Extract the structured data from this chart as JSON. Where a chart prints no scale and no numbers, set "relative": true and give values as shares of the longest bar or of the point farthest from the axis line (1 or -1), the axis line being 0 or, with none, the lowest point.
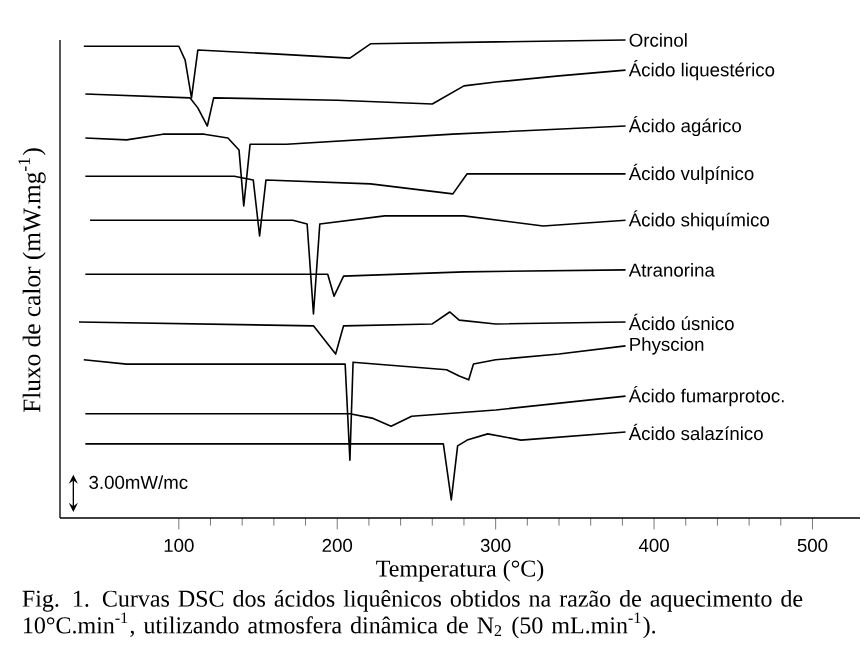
{
  "chart_data": {
    "type": "line",
    "relative": true,
    "xlabel": "Temperatura (°C)",
    "ylabel": "Fluxo de calor (mW.mg$^{-1}$)",
    "xlim": [
      25,
      530
    ],
    "xticks": [
      100,
      200,
      300,
      400,
      500
    ],
    "legend": false,
    "annotations": [
      "3.00mW/mc",
      "Fig. 1. Curvas DSC dos ácidos liquênicos obtidos na razão de aquecimento de 10°C.min$^{-1}$, utilizando atmosfera dinâmica de N$_{2}$ (50 mL.min$^{-1}$)."
    ],
    "series": [
      {
        "name": "Orcinol",
        "color": "#000000",
        "x": [
          40,
          100,
          104,
          108,
          112,
          160,
          208,
          221,
          300,
          382
        ],
        "values": [
          0.987,
          0.987,
          0.958,
          0.879,
          0.979,
          0.971,
          0.962,
          0.992,
          0.996,
          1
        ]
      },
      {
        "name": "Ácido liquestérico",
        "color": "#000000",
        "x": [
          41,
          107,
          112,
          118,
          122,
          200,
          260,
          280,
          300,
          340,
          382
        ],
        "values": [
          0.887,
          0.879,
          0.858,
          0.82,
          0.879,
          0.874,
          0.866,
          0.904,
          0.912,
          0.925,
          0.937
        ]
      },
      {
        "name": "Ácido agárico",
        "color": "#000000",
        "x": [
          41,
          67,
          90,
          116,
          131,
          138,
          141,
          145,
          168,
          273,
          382
        ],
        "values": [
          0.795,
          0.791,
          0.803,
          0.803,
          0.795,
          0.77,
          0.653,
          0.782,
          0.782,
          0.803,
          0.82
        ]
      },
      {
        "name": "Ácido vulpínico",
        "color": "#000000",
        "x": [
          41,
          135,
          147,
          151,
          155,
          221,
          273,
          282,
          382
        ],
        "values": [
          0.715,
          0.715,
          0.707,
          0.59,
          0.707,
          0.699,
          0.678,
          0.72,
          0.72
        ]
      },
      {
        "name": "Ácido shiquímico",
        "color": "#000000",
        "x": [
          44,
          172,
          181,
          185,
          189,
          230,
          280,
          330,
          382
        ],
        "values": [
          0.623,
          0.623,
          0.615,
          0.427,
          0.615,
          0.632,
          0.632,
          0.611,
          0.623
        ]
      },
      {
        "name": "Atranorina",
        "color": "#000000",
        "x": [
          41,
          194,
          198,
          204,
          280,
          382
        ],
        "values": [
          0.51,
          0.51,
          0.464,
          0.506,
          0.515,
          0.519
        ]
      },
      {
        "name": "Ácido úsnico",
        "color": "#000000",
        "x": [
          37,
          185,
          199,
          204,
          260,
          271,
          277,
          300,
          382
        ],
        "values": [
          0.41,
          0.402,
          0.343,
          0.402,
          0.406,
          0.431,
          0.414,
          0.406,
          0.41
        ]
      },
      {
        "name": "Physcion",
        "color": "#000000",
        "x": [
          40,
          67,
          205,
          208,
          210,
          269,
          277,
          283,
          286,
          300,
          340,
          382
        ],
        "values": [
          0.331,
          0.322,
          0.322,
          0.121,
          0.326,
          0.31,
          0.297,
          0.289,
          0.322,
          0.331,
          0.343,
          0.36
        ]
      },
      {
        "name": "Ácido fumarprotoc.",
        "color": "#000000",
        "x": [
          41,
          208,
          222,
          234,
          247,
          300,
          382
        ],
        "values": [
          0.218,
          0.218,
          0.209,
          0.192,
          0.213,
          0.226,
          0.255
        ]
      },
      {
        "name": "Ácido salazínico",
        "color": "#000000",
        "x": [
          41,
          267,
          272,
          276,
          282,
          295,
          316,
          382
        ],
        "values": [
          0.155,
          0.155,
          0.038,
          0.151,
          0.163,
          0.176,
          0.163,
          0.18
        ]
      }
    ]
  }
}
